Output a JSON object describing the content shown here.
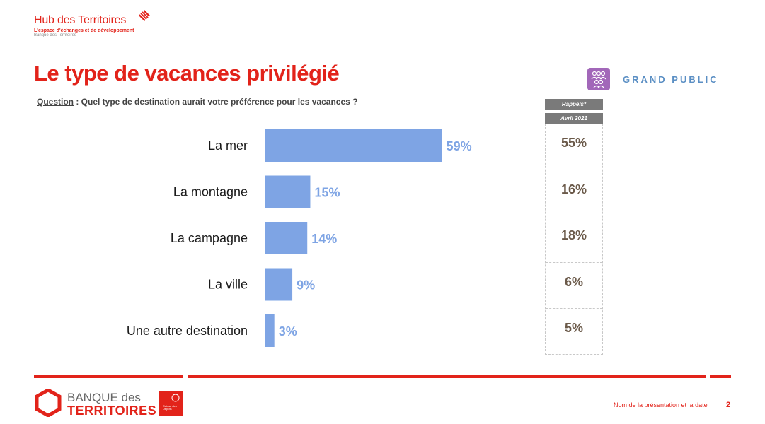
{
  "header": {
    "brand_title": "Hub des Territoires",
    "brand_subtitle": "L'espace d'échanges et de développement",
    "brand_tagline": "Banque des Territoires"
  },
  "page_title": "Le type de vacances privilégié",
  "question": {
    "label": "Question",
    "text": " : Quel type de destination aurait votre préférence pour les vacances ?"
  },
  "audience": {
    "label": "GRAND PUBLIC",
    "icon": "group-of-people-icon",
    "color": "#a267b9"
  },
  "chart_data": {
    "type": "bar",
    "orientation": "horizontal",
    "categories": [
      "La mer",
      "La montagne",
      "La campagne",
      "La ville",
      "Une autre destination"
    ],
    "values": [
      59,
      15,
      14,
      9,
      3
    ],
    "value_labels": [
      "59%",
      "15%",
      "14%",
      "9%",
      "3%"
    ],
    "unit": "%",
    "bar_color": "#7ea4e4",
    "title": "",
    "xlabel": "",
    "ylabel": "",
    "xlim": [
      0,
      100
    ],
    "grid": false
  },
  "reminder": {
    "header": "Rappels*",
    "period": "Avril 2021",
    "values": [
      "55%",
      "16%",
      "18%",
      "6%",
      "5%"
    ]
  },
  "footer": {
    "brand_line1": "BANQUE des",
    "brand_line2": "TERRITOIRES",
    "cdc_text": "Caisse des Dépôts",
    "note": "Nom de la présentation et la date",
    "page_number": "2"
  },
  "colors": {
    "accent": "#e2231a",
    "bar": "#7ea4e4",
    "reminder_text": "#6b5a4a"
  }
}
